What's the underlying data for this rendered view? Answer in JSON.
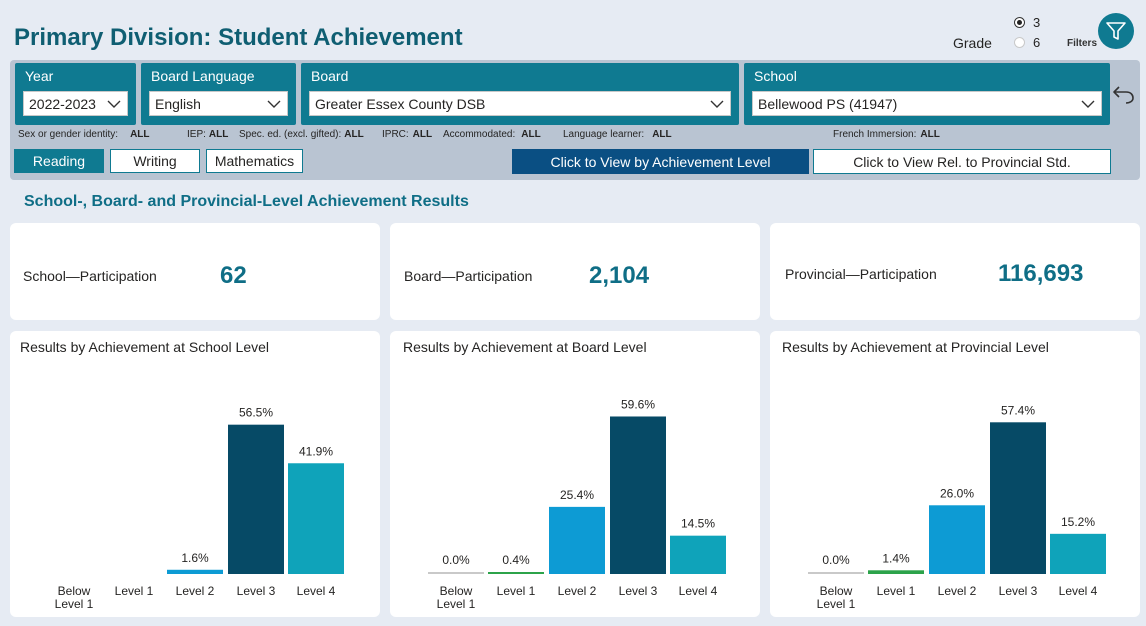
{
  "header": {
    "title": "Primary Division: Student Achievement",
    "grade_label": "Grade",
    "grade_options": [
      "3",
      "6"
    ],
    "grade_selected": "3",
    "filters_label": "Filters"
  },
  "slicers": {
    "year": {
      "title": "Year",
      "value": "2022-2023"
    },
    "language": {
      "title": "Board Language",
      "value": "English"
    },
    "board": {
      "title": "Board",
      "value": "Greater Essex County DSB"
    },
    "school": {
      "title": "School",
      "value": "Bellewood PS (41947)"
    }
  },
  "filters": {
    "sex": {
      "label": "Sex or gender identity:",
      "value": "ALL"
    },
    "iep": {
      "label": "IEP:",
      "value": "ALL"
    },
    "spec_ed": {
      "label": "Spec. ed. (excl. gifted):",
      "value": "ALL"
    },
    "iprc": {
      "label": "IPRC:",
      "value": "ALL"
    },
    "accommodated": {
      "label": "Accommodated:",
      "value": "ALL"
    },
    "language_learner": {
      "label": "Language learner:",
      "value": "ALL"
    },
    "french_immersion": {
      "label": "French Immersion:",
      "value": "ALL"
    }
  },
  "tabs": [
    "Reading",
    "Writing",
    "Mathematics"
  ],
  "active_tab": "Reading",
  "view_buttons": {
    "achievement": "Click to View by Achievement Level",
    "provincial": "Click to View Rel. to Provincial Std."
  },
  "section_title": "School-, Board- and Provincial-Level Achievement Results",
  "participation": [
    {
      "label": "School—Participation",
      "value": "62"
    },
    {
      "label": "Board—Participation",
      "value": "2,104"
    },
    {
      "label": "Provincial—Participation",
      "value": "116,693"
    }
  ],
  "colors": {
    "accent": "#0f7a91",
    "below_level_1": "#c9c9c9",
    "level_1": "#2ca34a",
    "level_2": "#0d9bd4",
    "level_3": "#064a66",
    "level_4": "#0fa3ba"
  },
  "chart_data": [
    {
      "type": "bar",
      "title": "Results by Achievement at School Level",
      "categories": [
        "Below Level 1",
        "Level 1",
        "Level 2",
        "Level 3",
        "Level 4"
      ],
      "values": [
        null,
        null,
        1.6,
        56.5,
        41.9
      ],
      "data_labels": [
        "",
        "",
        "1.6%",
        "56.5%",
        "41.9%"
      ],
      "ylim": [
        0,
        70
      ]
    },
    {
      "type": "bar",
      "title": "Results by Achievement at Board Level",
      "categories": [
        "Below Level 1",
        "Level 1",
        "Level 2",
        "Level 3",
        "Level 4"
      ],
      "values": [
        0.0,
        0.4,
        25.4,
        59.6,
        14.5
      ],
      "data_labels": [
        "0.0%",
        "0.4%",
        "25.4%",
        "59.6%",
        "14.5%"
      ],
      "ylim": [
        0,
        70
      ]
    },
    {
      "type": "bar",
      "title": "Results by Achievement at Provincial Level",
      "categories": [
        "Below Level 1",
        "Level 1",
        "Level 2",
        "Level 3",
        "Level 4"
      ],
      "values": [
        0.0,
        1.4,
        26.0,
        57.4,
        15.2
      ],
      "data_labels": [
        "0.0%",
        "1.4%",
        "26.0%",
        "57.4%",
        "15.2%"
      ],
      "ylim": [
        0,
        70
      ]
    }
  ]
}
